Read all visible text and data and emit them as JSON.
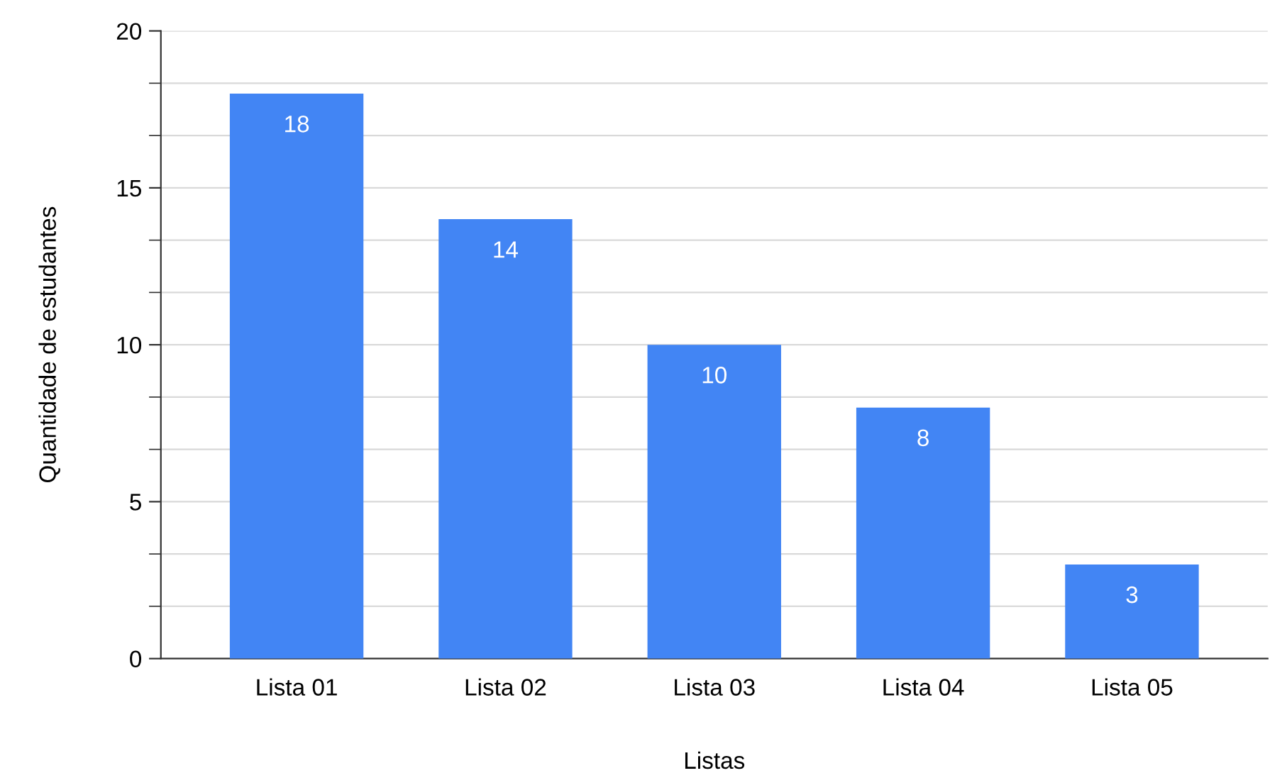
{
  "chart_data": {
    "type": "bar",
    "xlabel": "Listas",
    "ylabel": "Quantidade de estudantes",
    "categories": [
      "Lista 01",
      "Lista 02",
      "Lista 03",
      "Lista 04",
      "Lista 05"
    ],
    "values": [
      18,
      14,
      10,
      8,
      3
    ],
    "color": "#4285f4",
    "data_labels": true,
    "ylim": [
      0,
      20
    ],
    "yticks": [
      0,
      5,
      10,
      15,
      20
    ],
    "grid": "y",
    "legend": false
  }
}
